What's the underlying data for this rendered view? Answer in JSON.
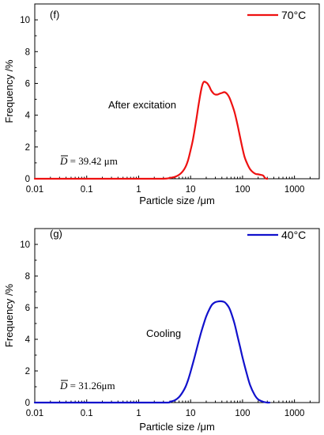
{
  "chart_data": [
    {
      "type": "line",
      "panel_label": "(f)",
      "xlabel": "Particle size /μm",
      "ylabel": "Frequency /%",
      "xscale": "log",
      "xlim": [
        0.01,
        3000
      ],
      "ylim": [
        0,
        11
      ],
      "x_ticks": [
        0.01,
        0.1,
        1,
        10,
        100,
        1000
      ],
      "x_tick_labels": [
        "0.01",
        "0.1",
        "1",
        "10",
        "100",
        "1000"
      ],
      "y_ticks": [
        0,
        2,
        4,
        6,
        8,
        10
      ],
      "y_tick_labels": [
        "0",
        "2",
        "4",
        "6",
        "8",
        "10"
      ],
      "legend": {
        "position": "top-right",
        "label": "70°C"
      },
      "annotation": "After excitation",
      "mean_label": "D",
      "mean_value": " = 39.42 μm",
      "series": [
        {
          "name": "70°C",
          "color": "#ee1111",
          "x": [
            0.01,
            1,
            3,
            4,
            5,
            6,
            7,
            8,
            9,
            10,
            11,
            12,
            13,
            14,
            15,
            16,
            17,
            18,
            19,
            20,
            21,
            23,
            25,
            28,
            30,
            33,
            36,
            40,
            45,
            50,
            55,
            60,
            70,
            80,
            90,
            100,
            110,
            125,
            140,
            160,
            180,
            200,
            220,
            250,
            270,
            290,
            300
          ],
          "y": [
            0,
            0,
            0,
            0.05,
            0.12,
            0.25,
            0.45,
            0.75,
            1.2,
            1.8,
            2.4,
            3.1,
            3.8,
            4.5,
            5.1,
            5.6,
            5.95,
            6.1,
            6.1,
            6.05,
            6.0,
            5.8,
            5.55,
            5.35,
            5.3,
            5.3,
            5.35,
            5.4,
            5.45,
            5.35,
            5.15,
            4.85,
            4.2,
            3.4,
            2.6,
            1.9,
            1.35,
            0.9,
            0.6,
            0.4,
            0.3,
            0.28,
            0.25,
            0.2,
            0.05,
            0,
            0
          ]
        }
      ]
    },
    {
      "type": "line",
      "panel_label": "(g)",
      "xlabel": "Particle size /μm",
      "ylabel": "Frequency /%",
      "xscale": "log",
      "xlim": [
        0.01,
        3000
      ],
      "ylim": [
        0,
        11
      ],
      "x_ticks": [
        0.01,
        0.1,
        1,
        10,
        100,
        1000
      ],
      "x_tick_labels": [
        "0.01",
        "0.1",
        "1",
        "10",
        "100",
        "1000"
      ],
      "y_ticks": [
        0,
        2,
        4,
        6,
        8,
        10
      ],
      "y_tick_labels": [
        "0",
        "2",
        "4",
        "6",
        "8",
        "10"
      ],
      "legend": {
        "position": "top-right",
        "label": "40°C"
      },
      "annotation": "Cooling",
      "mean_label": "D",
      "mean_value": " = 31.26μm",
      "series": [
        {
          "name": "40°C",
          "color": "#1111cc",
          "x": [
            0.01,
            1,
            3.5,
            4,
            5,
            6,
            7,
            8,
            9,
            10,
            12,
            14,
            16,
            18,
            20,
            23,
            26,
            30,
            35,
            40,
            45,
            50,
            55,
            60,
            70,
            80,
            90,
            100,
            120,
            140,
            170,
            200,
            250,
            300,
            330
          ],
          "y": [
            0,
            0,
            0,
            0.05,
            0.15,
            0.35,
            0.65,
            1.0,
            1.45,
            1.95,
            2.9,
            3.75,
            4.45,
            5.0,
            5.45,
            5.9,
            6.2,
            6.35,
            6.4,
            6.4,
            6.35,
            6.2,
            6.0,
            5.7,
            5.0,
            4.2,
            3.5,
            2.85,
            1.85,
            1.1,
            0.5,
            0.2,
            0.05,
            0,
            0
          ]
        }
      ]
    }
  ]
}
